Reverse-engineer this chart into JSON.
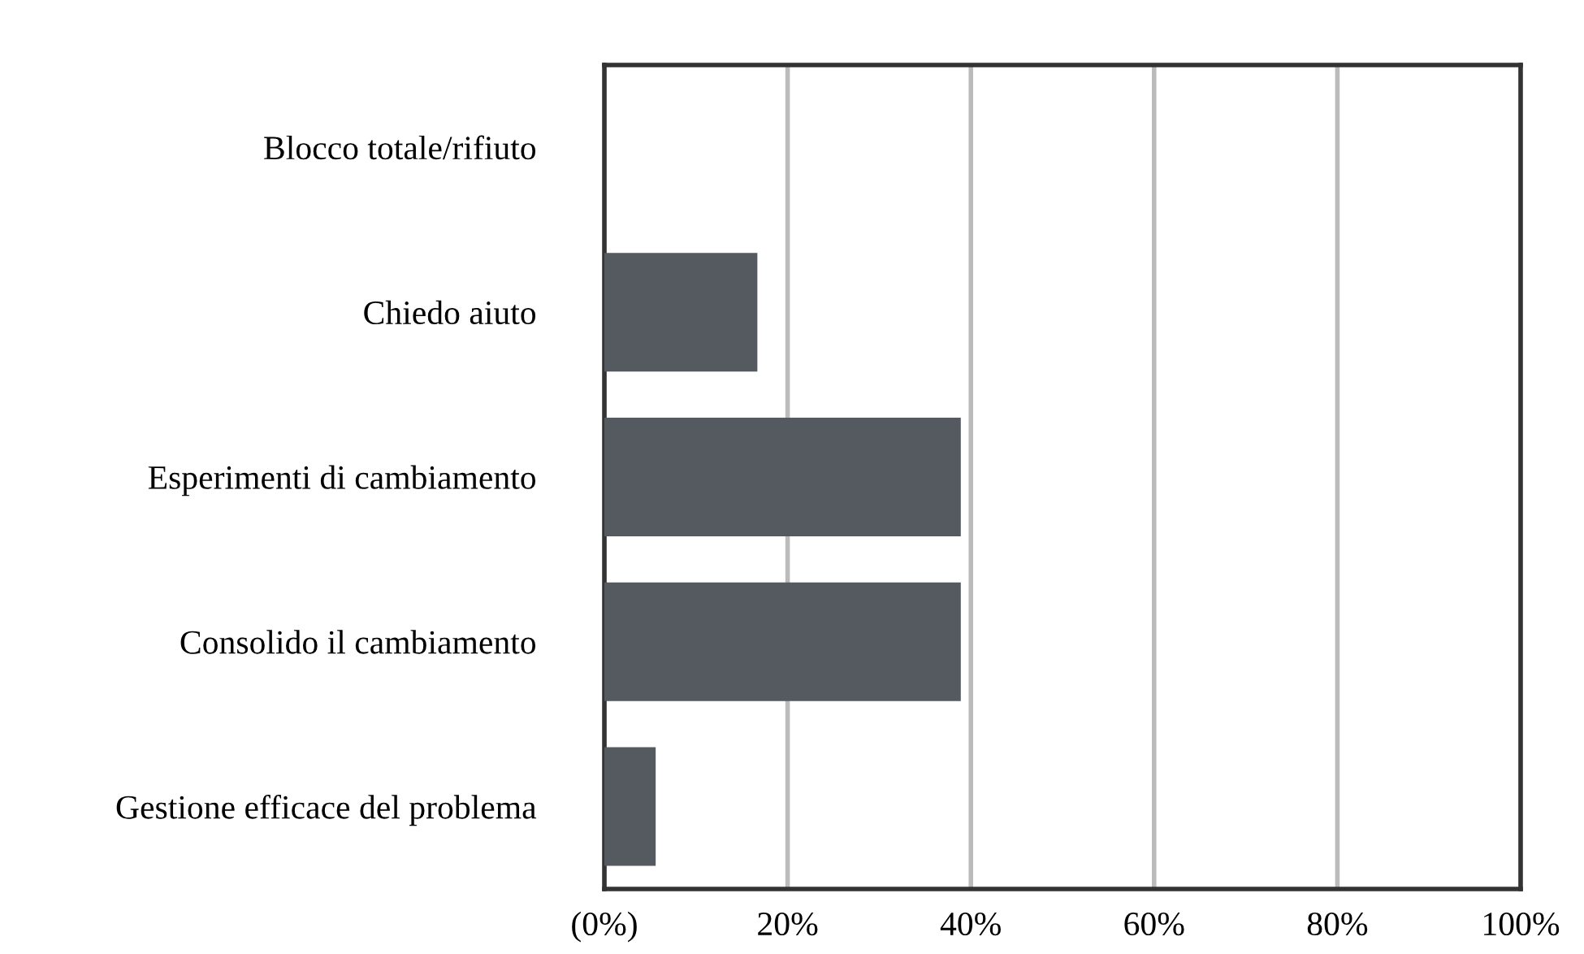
{
  "chart_data": {
    "type": "bar",
    "orientation": "horizontal",
    "categories": [
      "Blocco totale/rifiuto",
      "Chiedo aiuto",
      "Esperimenti di cambiamento",
      "Consolido il cambiamento",
      "Gestione efficace del problema"
    ],
    "values": [
      0,
      16.7,
      38.9,
      38.9,
      5.6
    ],
    "color": "#555a61",
    "xlim": [
      0,
      100
    ],
    "xticks": [
      {
        "value": 0,
        "label": "(0%)"
      },
      {
        "value": 20,
        "label": "20%"
      },
      {
        "value": 40,
        "label": "40%"
      },
      {
        "value": 60,
        "label": "60%"
      },
      {
        "value": 80,
        "label": "80%"
      },
      {
        "value": 100,
        "label": "100%"
      }
    ],
    "grid": "x",
    "legend": false
  }
}
